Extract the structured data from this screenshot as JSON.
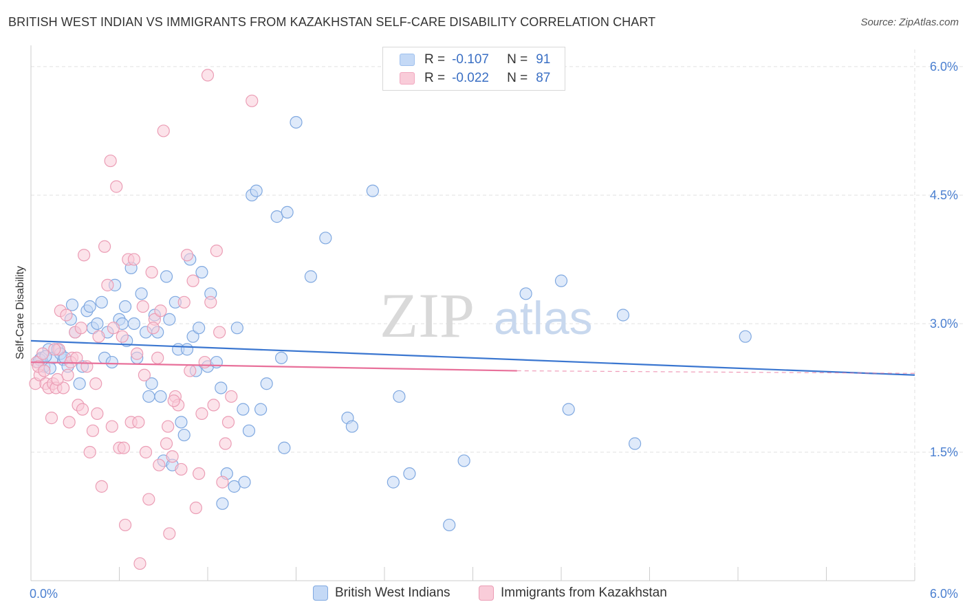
{
  "header": {
    "title": "BRITISH WEST INDIAN VS IMMIGRANTS FROM KAZAKHSTAN SELF-CARE DISABILITY CORRELATION CHART",
    "source": "Source: ZipAtlas.com"
  },
  "stats": {
    "r_label": "R =",
    "n_label": "N =",
    "rows": [
      {
        "r": "-0.107",
        "n": "91",
        "color": "#9ec0ee",
        "fill": "#c4d9f6"
      },
      {
        "r": "-0.022",
        "n": "87",
        "color": "#f2a7bf",
        "fill": "#f9ccd9"
      }
    ]
  },
  "watermark": {
    "zip": "ZIP",
    "atlas": "atlas"
  },
  "legend": {
    "items": [
      {
        "label": "British West Indians",
        "fill": "#c4d9f6",
        "stroke": "#7fa8e0"
      },
      {
        "label": "Immigrants from Kazakhstan",
        "fill": "#f9ccd9",
        "stroke": "#eb9db5"
      }
    ]
  },
  "chart_data": {
    "type": "scatter",
    "title": "BRITISH WEST INDIAN VS IMMIGRANTS FROM KAZAKHSTAN SELF-CARE DISABILITY CORRELATION CHART",
    "xlabel": "",
    "ylabel": "Self-Care Disability",
    "xlim": [
      0,
      6
    ],
    "ylim": [
      0,
      6.2
    ],
    "x_tick_labels": [
      {
        "value": 0,
        "label": "0.0%"
      },
      {
        "value": 6,
        "label": "6.0%"
      }
    ],
    "y_ticks": [
      {
        "value": 1.5,
        "label": "1.5%"
      },
      {
        "value": 3.0,
        "label": "3.0%"
      },
      {
        "value": 4.5,
        "label": "4.5%"
      },
      {
        "value": 6.0,
        "label": "6.0%"
      }
    ],
    "grid": true,
    "legend_position": "bottom",
    "series": [
      {
        "name": "British West Indians",
        "stroke": "#7fa8e0",
        "fill": "#c4d9f6",
        "line_color": "#3a76d0",
        "trend": {
          "x0": 0.0,
          "y0": 2.8,
          "x1": 6.0,
          "y1": 2.4,
          "dashed_from": null
        },
        "points": [
          [
            0.05,
            2.55
          ],
          [
            0.07,
            2.6
          ],
          [
            0.09,
            2.5
          ],
          [
            0.12,
            2.7
          ],
          [
            0.15,
            2.6
          ],
          [
            0.18,
            2.7
          ],
          [
            0.22,
            2.58
          ],
          [
            0.25,
            2.5
          ],
          [
            0.27,
            3.05
          ],
          [
            0.28,
            3.22
          ],
          [
            0.3,
            2.9
          ],
          [
            0.33,
            2.3
          ],
          [
            0.35,
            2.5
          ],
          [
            0.38,
            3.15
          ],
          [
            0.4,
            3.2
          ],
          [
            0.42,
            2.95
          ],
          [
            0.45,
            3.0
          ],
          [
            0.48,
            3.25
          ],
          [
            0.5,
            2.6
          ],
          [
            0.52,
            2.9
          ],
          [
            0.55,
            2.55
          ],
          [
            0.57,
            3.45
          ],
          [
            0.6,
            3.05
          ],
          [
            0.62,
            3.0
          ],
          [
            0.64,
            3.2
          ],
          [
            0.65,
            2.8
          ],
          [
            0.68,
            3.65
          ],
          [
            0.7,
            3.0
          ],
          [
            0.72,
            2.6
          ],
          [
            0.75,
            3.35
          ],
          [
            0.78,
            2.9
          ],
          [
            0.8,
            2.15
          ],
          [
            0.82,
            2.3
          ],
          [
            0.84,
            3.1
          ],
          [
            0.86,
            2.9
          ],
          [
            0.88,
            2.15
          ],
          [
            0.9,
            1.4
          ],
          [
            0.92,
            3.55
          ],
          [
            0.94,
            3.05
          ],
          [
            0.96,
            1.35
          ],
          [
            0.98,
            3.25
          ],
          [
            1.0,
            2.7
          ],
          [
            1.02,
            1.85
          ],
          [
            1.04,
            1.7
          ],
          [
            1.06,
            2.7
          ],
          [
            1.08,
            3.75
          ],
          [
            1.1,
            2.85
          ],
          [
            1.12,
            2.45
          ],
          [
            1.14,
            2.95
          ],
          [
            1.16,
            3.6
          ],
          [
            1.2,
            2.5
          ],
          [
            1.22,
            3.35
          ],
          [
            1.26,
            2.55
          ],
          [
            1.29,
            2.25
          ],
          [
            1.3,
            0.9
          ],
          [
            1.33,
            1.25
          ],
          [
            1.38,
            1.1
          ],
          [
            1.4,
            2.95
          ],
          [
            1.44,
            2.0
          ],
          [
            1.45,
            1.15
          ],
          [
            1.48,
            1.75
          ],
          [
            1.5,
            4.5
          ],
          [
            1.53,
            4.55
          ],
          [
            1.56,
            2.0
          ],
          [
            1.6,
            2.3
          ],
          [
            1.67,
            4.25
          ],
          [
            1.7,
            2.6
          ],
          [
            1.72,
            1.55
          ],
          [
            1.74,
            4.3
          ],
          [
            1.8,
            5.35
          ],
          [
            1.9,
            3.55
          ],
          [
            2.0,
            4.0
          ],
          [
            2.15,
            1.9
          ],
          [
            2.18,
            1.8
          ],
          [
            2.32,
            4.55
          ],
          [
            2.46,
            1.15
          ],
          [
            2.5,
            2.15
          ],
          [
            2.57,
            1.25
          ],
          [
            2.84,
            0.65
          ],
          [
            2.94,
            1.4
          ],
          [
            3.36,
            3.35
          ],
          [
            3.6,
            3.5
          ],
          [
            3.65,
            2.0
          ],
          [
            4.02,
            3.1
          ],
          [
            4.1,
            1.6
          ],
          [
            4.85,
            2.85
          ],
          [
            0.06,
            2.58
          ],
          [
            0.1,
            2.62
          ],
          [
            0.2,
            2.65
          ],
          [
            0.23,
            2.6
          ],
          [
            0.13,
            2.48
          ]
        ]
      },
      {
        "name": "Immigrants from Kazakhstan",
        "stroke": "#eb9db5",
        "fill": "#f9ccd9",
        "line_color": "#e8709a",
        "trend": {
          "x0": 0.0,
          "y0": 2.55,
          "x1": 3.3,
          "y1": 2.45,
          "dashed_from": 3.3,
          "dashed_to": 6.0,
          "dashed_y1": 2.42
        },
        "points": [
          [
            0.03,
            2.3
          ],
          [
            0.04,
            2.55
          ],
          [
            0.06,
            2.4
          ],
          [
            0.08,
            2.65
          ],
          [
            0.1,
            2.3
          ],
          [
            0.12,
            2.25
          ],
          [
            0.14,
            1.9
          ],
          [
            0.15,
            2.3
          ],
          [
            0.17,
            2.25
          ],
          [
            0.19,
            2.7
          ],
          [
            0.2,
            3.15
          ],
          [
            0.22,
            2.25
          ],
          [
            0.24,
            3.1
          ],
          [
            0.26,
            1.85
          ],
          [
            0.28,
            2.6
          ],
          [
            0.3,
            2.9
          ],
          [
            0.32,
            2.05
          ],
          [
            0.34,
            2.95
          ],
          [
            0.36,
            3.8
          ],
          [
            0.38,
            2.5
          ],
          [
            0.4,
            1.5
          ],
          [
            0.42,
            1.75
          ],
          [
            0.44,
            2.3
          ],
          [
            0.46,
            2.85
          ],
          [
            0.48,
            1.1
          ],
          [
            0.5,
            3.9
          ],
          [
            0.52,
            3.45
          ],
          [
            0.54,
            4.9
          ],
          [
            0.56,
            2.95
          ],
          [
            0.58,
            4.6
          ],
          [
            0.6,
            1.55
          ],
          [
            0.62,
            2.85
          ],
          [
            0.64,
            0.65
          ],
          [
            0.66,
            3.75
          ],
          [
            0.68,
            1.85
          ],
          [
            0.7,
            3.75
          ],
          [
            0.72,
            2.65
          ],
          [
            0.74,
            0.2
          ],
          [
            0.76,
            3.2
          ],
          [
            0.78,
            1.5
          ],
          [
            0.8,
            0.95
          ],
          [
            0.82,
            3.6
          ],
          [
            0.84,
            3.05
          ],
          [
            0.86,
            2.6
          ],
          [
            0.88,
            3.15
          ],
          [
            0.9,
            5.25
          ],
          [
            0.92,
            1.6
          ],
          [
            0.94,
            0.55
          ],
          [
            0.96,
            1.45
          ],
          [
            0.98,
            2.15
          ],
          [
            1.0,
            2.05
          ],
          [
            1.02,
            1.3
          ],
          [
            1.04,
            3.25
          ],
          [
            1.06,
            3.8
          ],
          [
            1.08,
            2.45
          ],
          [
            1.1,
            3.5
          ],
          [
            1.12,
            0.85
          ],
          [
            1.14,
            1.25
          ],
          [
            1.16,
            1.95
          ],
          [
            1.18,
            2.55
          ],
          [
            1.2,
            5.9
          ],
          [
            1.22,
            3.25
          ],
          [
            1.24,
            2.05
          ],
          [
            1.26,
            3.85
          ],
          [
            1.28,
            2.9
          ],
          [
            1.3,
            1.15
          ],
          [
            1.32,
            1.6
          ],
          [
            1.34,
            1.85
          ],
          [
            1.36,
            2.15
          ],
          [
            1.5,
            5.6
          ],
          [
            0.05,
            2.5
          ],
          [
            0.09,
            2.45
          ],
          [
            0.16,
            2.7
          ],
          [
            0.18,
            2.35
          ],
          [
            0.25,
            2.4
          ],
          [
            0.27,
            2.55
          ],
          [
            0.31,
            2.6
          ],
          [
            0.35,
            2.0
          ],
          [
            0.45,
            1.95
          ],
          [
            0.55,
            1.8
          ],
          [
            0.63,
            1.55
          ],
          [
            0.73,
            1.85
          ],
          [
            0.77,
            2.4
          ],
          [
            0.83,
            2.95
          ],
          [
            0.87,
            1.35
          ],
          [
            0.93,
            1.8
          ],
          [
            0.97,
            2.1
          ]
        ]
      }
    ]
  }
}
